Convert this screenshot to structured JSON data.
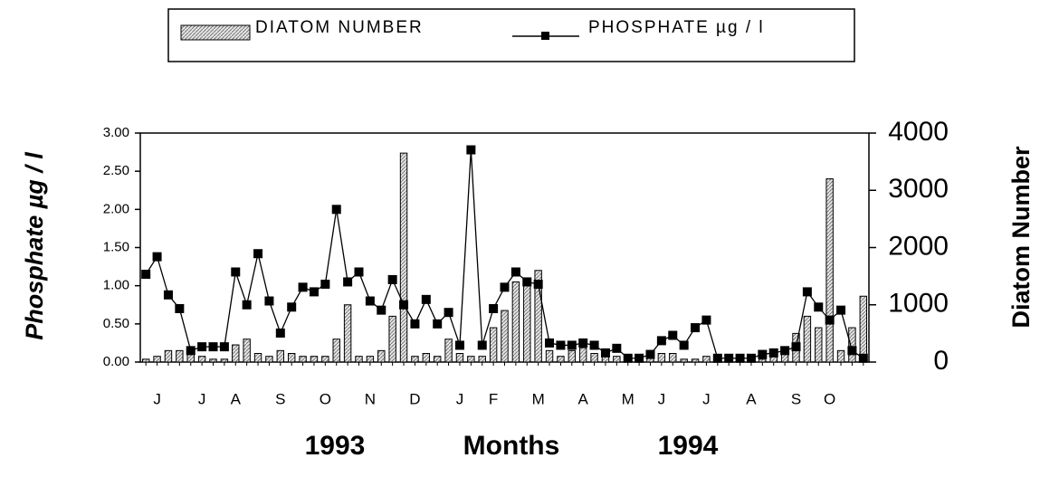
{
  "chart_data": {
    "type": "bar_line",
    "x_label": "Months",
    "year_labels": [
      "1993",
      "1994"
    ],
    "categories": [
      null,
      "J",
      null,
      null,
      null,
      "J",
      null,
      null,
      "A",
      null,
      null,
      null,
      "S",
      null,
      null,
      null,
      "O",
      null,
      null,
      null,
      "N",
      null,
      null,
      null,
      "D",
      null,
      null,
      null,
      "J",
      null,
      null,
      "F",
      null,
      null,
      null,
      "M",
      null,
      null,
      null,
      "A",
      null,
      null,
      null,
      "M",
      null,
      null,
      "J",
      null,
      null,
      null,
      "J",
      null,
      null,
      null,
      "A",
      null,
      null,
      null,
      "S",
      null,
      null,
      "O",
      null,
      null,
      null
    ],
    "ylim": [
      0,
      3
    ],
    "yticks": [
      {
        "value": 0,
        "label": "0.00"
      },
      {
        "value": 0.5,
        "label": "0.50"
      },
      {
        "value": 1,
        "label": "1.00"
      },
      {
        "value": 1.5,
        "label": "1.50"
      },
      {
        "value": 2,
        "label": "2.00"
      },
      {
        "value": 2.5,
        "label": "2.50"
      },
      {
        "value": 3,
        "label": "3.00"
      }
    ],
    "y_label": "Phosphate µg / l",
    "y2lim": [
      0,
      4000
    ],
    "y2ticks": [
      0,
      1000,
      2000,
      3000,
      4000
    ],
    "y2_label": "Diatom Number",
    "series": [
      {
        "name": "DIATOM NUMBER",
        "kind": "bar",
        "axis": "y2",
        "color": "#d8d8d8",
        "values": [
          50,
          100,
          200,
          200,
          150,
          100,
          50,
          50,
          300,
          400,
          150,
          100,
          200,
          150,
          100,
          100,
          100,
          400,
          1000,
          100,
          100,
          200,
          800,
          3650,
          100,
          150,
          100,
          400,
          150,
          100,
          100,
          600,
          900,
          1400,
          1350,
          1600,
          200,
          100,
          200,
          250,
          150,
          150,
          100,
          50,
          100,
          100,
          150,
          150,
          50,
          50,
          100,
          50,
          50,
          50,
          30,
          50,
          100,
          200,
          500,
          800,
          600,
          3200,
          200,
          600,
          1150
        ]
      },
      {
        "name": "PHOSPHATE µg / l",
        "kind": "line",
        "axis": "y",
        "color": "#000000",
        "values": [
          1.15,
          1.38,
          0.88,
          0.7,
          0.15,
          0.2,
          0.2,
          0.2,
          1.18,
          0.75,
          1.42,
          0.8,
          0.38,
          0.72,
          0.98,
          0.92,
          1.02,
          2.0,
          1.05,
          1.18,
          0.8,
          0.68,
          1.08,
          0.75,
          0.5,
          0.82,
          0.5,
          0.65,
          0.22,
          2.78,
          0.22,
          0.7,
          0.98,
          1.18,
          1.05,
          1.02,
          0.25,
          0.22,
          0.22,
          0.25,
          0.22,
          0.12,
          0.18,
          0.05,
          0.05,
          0.1,
          0.28,
          0.35,
          0.22,
          0.45,
          0.55,
          0.05,
          0.05,
          0.05,
          0.05,
          0.1,
          0.12,
          0.15,
          0.2,
          0.92,
          0.72,
          0.55,
          0.68,
          0.15,
          0.05
        ]
      }
    ]
  }
}
